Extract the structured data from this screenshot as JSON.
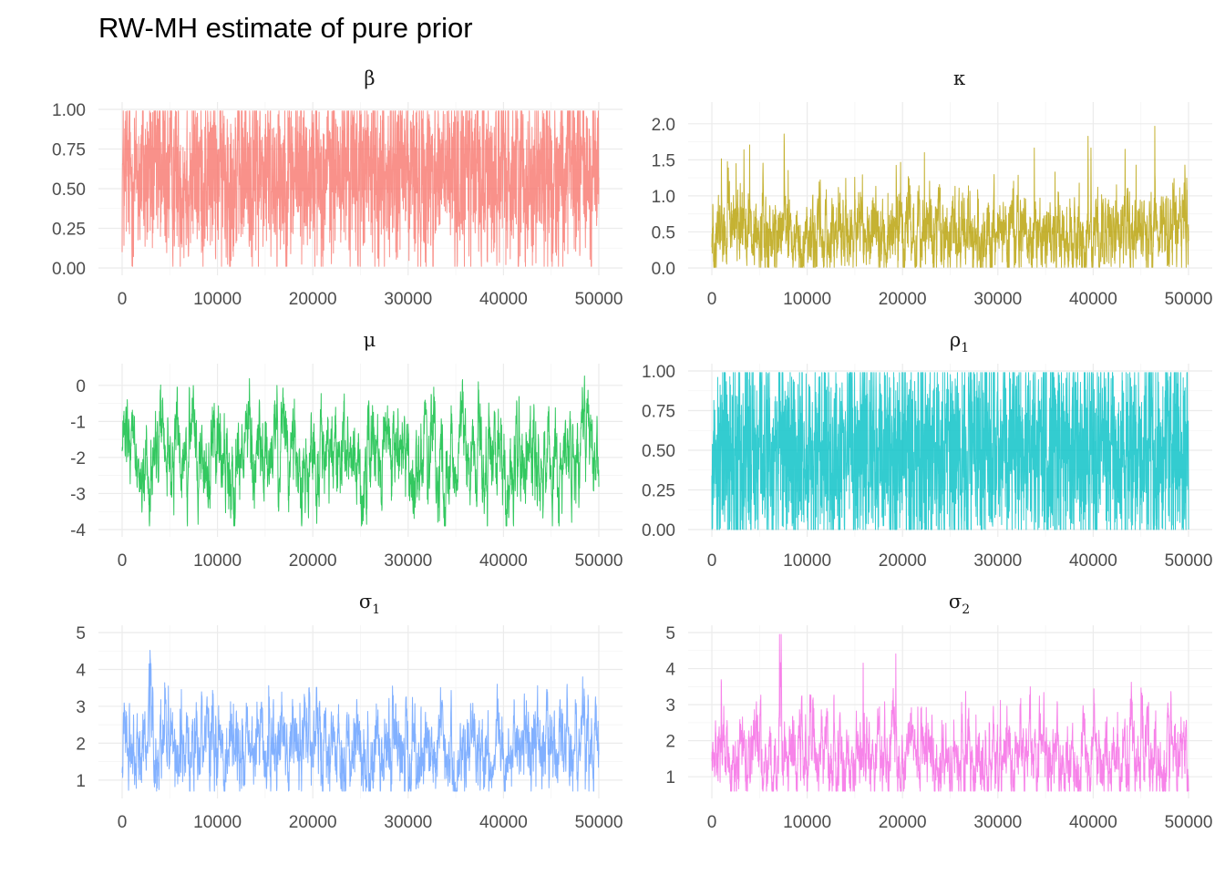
{
  "title": "RW-MH estimate of pure prior",
  "chart_data": [
    {
      "type": "line",
      "facet": "β",
      "strip_title": "β",
      "strip_subscript": "",
      "color": "#F8766D",
      "x_range": [
        0,
        50000
      ],
      "ylim": [
        0,
        1
      ],
      "x_ticks": [
        0,
        10000,
        20000,
        30000,
        40000,
        50000
      ],
      "x_tick_labels": [
        "0",
        "10000",
        "20000",
        "30000",
        "40000",
        "50000"
      ],
      "y_ticks": [
        0,
        0.25,
        0.5,
        0.75,
        1
      ],
      "y_tick_labels": [
        "0.00",
        "0.25",
        "0.50",
        "0.75",
        "1.00"
      ],
      "trace": {
        "base": 0.6,
        "scale": 0.34,
        "min": 0.01,
        "max": 0.99,
        "ar": 0.3,
        "spike_prob": 0.0,
        "spike_size": 0.0
      }
    },
    {
      "type": "line",
      "facet": "κ",
      "strip_title": "κ",
      "strip_subscript": "",
      "color": "#B79F00",
      "x_range": [
        0,
        50000
      ],
      "ylim": [
        0,
        2.2
      ],
      "x_ticks": [
        0,
        10000,
        20000,
        30000,
        40000,
        50000
      ],
      "x_tick_labels": [
        "0",
        "10000",
        "20000",
        "30000",
        "40000",
        "50000"
      ],
      "y_ticks": [
        0,
        0.5,
        1,
        1.5,
        2
      ],
      "y_tick_labels": [
        "0.0",
        "0.5",
        "1.0",
        "1.5",
        "2.0"
      ],
      "trace": {
        "base": 0.45,
        "scale": 0.28,
        "min": 0.01,
        "max": 2.2,
        "ar": 0.6,
        "spike_prob": 0.02,
        "spike_size": 1.4
      }
    },
    {
      "type": "line",
      "facet": "μ",
      "strip_title": "μ",
      "strip_subscript": "",
      "color": "#00BA38",
      "x_range": [
        0,
        50000
      ],
      "ylim": [
        -4,
        0.4
      ],
      "x_ticks": [
        0,
        10000,
        20000,
        30000,
        40000,
        50000
      ],
      "x_tick_labels": [
        "0",
        "10000",
        "20000",
        "30000",
        "40000",
        "50000"
      ],
      "y_ticks": [
        -4,
        -3,
        -2,
        -1,
        0
      ],
      "y_tick_labels": [
        "-4",
        "-3",
        "-2",
        "-1",
        "0"
      ],
      "trace": {
        "base": -2.0,
        "scale": 0.55,
        "min": -3.9,
        "max": 0.4,
        "ar": 0.85,
        "spike_prob": 0.0,
        "spike_size": 0.0
      }
    },
    {
      "type": "line",
      "facet": "ρ1",
      "strip_title": "ρ",
      "strip_subscript": "1",
      "color": "#00BFC4",
      "x_range": [
        0,
        50000
      ],
      "ylim": [
        0,
        1
      ],
      "x_ticks": [
        0,
        10000,
        20000,
        30000,
        40000,
        50000
      ],
      "x_tick_labels": [
        "0",
        "10000",
        "20000",
        "30000",
        "40000",
        "50000"
      ],
      "y_ticks": [
        0,
        0.25,
        0.5,
        0.75,
        1
      ],
      "y_tick_labels": [
        "0.00",
        "0.25",
        "0.50",
        "0.75",
        "1.00"
      ],
      "trace": {
        "base": 0.5,
        "scale": 0.4,
        "min": 0.0,
        "max": 0.99,
        "ar": 0.2,
        "spike_prob": 0.0,
        "spike_size": 0.0
      }
    },
    {
      "type": "line",
      "facet": "σ1",
      "strip_title": "σ",
      "strip_subscript": "1",
      "color": "#619CFF",
      "x_range": [
        0,
        50000
      ],
      "ylim": [
        0.7,
        5
      ],
      "x_ticks": [
        0,
        10000,
        20000,
        30000,
        40000,
        50000
      ],
      "x_tick_labels": [
        "0",
        "10000",
        "20000",
        "30000",
        "40000",
        "50000"
      ],
      "y_ticks": [
        1,
        2,
        3,
        4,
        5
      ],
      "y_tick_labels": [
        "1",
        "2",
        "3",
        "4",
        "5"
      ],
      "trace": {
        "base": 1.75,
        "scale": 0.5,
        "min": 0.7,
        "max": 4.95,
        "ar": 0.8,
        "spike_prob": 0.012,
        "spike_size": 2.2
      }
    },
    {
      "type": "line",
      "facet": "σ2",
      "strip_title": "σ",
      "strip_subscript": "2",
      "color": "#F564E3",
      "x_range": [
        0,
        50000
      ],
      "ylim": [
        0.6,
        5
      ],
      "x_ticks": [
        0,
        10000,
        20000,
        30000,
        40000,
        50000
      ],
      "x_tick_labels": [
        "0",
        "10000",
        "20000",
        "30000",
        "40000",
        "50000"
      ],
      "y_ticks": [
        1,
        2,
        3,
        4,
        5
      ],
      "y_tick_labels": [
        "1",
        "2",
        "3",
        "4",
        "5"
      ],
      "trace": {
        "base": 1.55,
        "scale": 0.5,
        "min": 0.6,
        "max": 4.95,
        "ar": 0.8,
        "spike_prob": 0.012,
        "spike_size": 2.3
      }
    }
  ]
}
